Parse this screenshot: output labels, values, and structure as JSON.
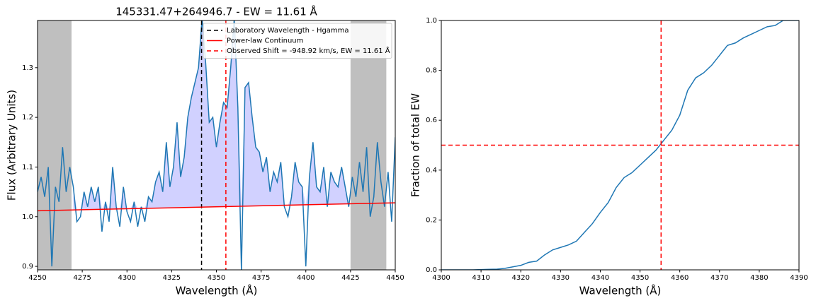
{
  "chart_data": [
    {
      "type": "line",
      "title": "145331.47+264946.7 - EW = 11.61 Å",
      "xlabel": "Wavelength (Å)",
      "ylabel": "Flux (Arbitrary Units)",
      "xlim": [
        4250,
        4450
      ],
      "ylim": [
        0.893,
        1.395
      ],
      "xticks": [
        4250,
        4275,
        4300,
        4325,
        4350,
        4375,
        4400,
        4425,
        4450
      ],
      "yticks": [
        0.9,
        {
          "value": 1,
          "label": "1.0"
        },
        1.1,
        1.2,
        1.3
      ],
      "color": "#1f77b4",
      "x": [
        4250,
        4252,
        4254,
        4256,
        4258,
        4260,
        4262,
        4264,
        4266,
        4268,
        4270,
        4272,
        4274,
        4276,
        4278,
        4280,
        4282,
        4284,
        4286,
        4288,
        4290,
        4292,
        4294,
        4296,
        4298,
        4300,
        4302,
        4304,
        4306,
        4308,
        4310,
        4312,
        4314,
        4316,
        4318,
        4320,
        4322,
        4324,
        4326,
        4328,
        4330,
        4332,
        4334,
        4336,
        4338,
        4340,
        4342,
        4344,
        4346,
        4348,
        4350,
        4352,
        4354,
        4356,
        4358,
        4360,
        4362,
        4364,
        4366,
        4368,
        4370,
        4372,
        4374,
        4376,
        4378,
        4380,
        4382,
        4384,
        4386,
        4388,
        4390,
        4392,
        4394,
        4396,
        4398,
        4400,
        4402,
        4404,
        4406,
        4408,
        4410,
        4412,
        4414,
        4416,
        4418,
        4420,
        4422,
        4424,
        4426,
        4428,
        4430,
        4432,
        4434,
        4436,
        4438,
        4440,
        4442,
        4444,
        4446,
        4448,
        4450
      ],
      "values": [
        1.05,
        1.08,
        1.04,
        1.1,
        0.9,
        1.06,
        1.03,
        1.14,
        1.05,
        1.1,
        1.06,
        0.99,
        1.0,
        1.05,
        1.02,
        1.06,
        1.03,
        1.06,
        0.97,
        1.03,
        0.99,
        1.1,
        1.02,
        0.98,
        1.06,
        1.01,
        0.99,
        1.03,
        0.98,
        1.02,
        0.99,
        1.04,
        1.03,
        1.07,
        1.09,
        1.05,
        1.15,
        1.06,
        1.1,
        1.19,
        1.08,
        1.12,
        1.2,
        1.24,
        1.27,
        1.3,
        1.4,
        1.31,
        1.19,
        1.2,
        1.14,
        1.19,
        1.23,
        1.22,
        1.3,
        1.4,
        1.22,
        0.89,
        1.26,
        1.27,
        1.2,
        1.14,
        1.13,
        1.09,
        1.12,
        1.05,
        1.09,
        1.07,
        1.11,
        1.02,
        1.0,
        1.04,
        1.11,
        1.07,
        1.06,
        0.9,
        1.08,
        1.15,
        1.06,
        1.05,
        1.1,
        1.02,
        1.09,
        1.07,
        1.06,
        1.1,
        1.06,
        1.02,
        1.08,
        1.04,
        1.11,
        1.05,
        1.14,
        1.0,
        1.04,
        1.15,
        1.07,
        1.02,
        1.09,
        0.99,
        1.16
      ],
      "fill": {
        "color": "#ccccff",
        "range": [
          4269,
          4425
        ]
      },
      "spans": [
        {
          "range": [
            4250,
            4269
          ],
          "color": "#bfbfbf"
        },
        {
          "range": [
            4425,
            4445
          ],
          "color": "#bfbfbf"
        }
      ],
      "lines": [
        {
          "name": "Laboratory Wavelength - Hgamma",
          "color": "#000000",
          "style": "dashed",
          "vx": 4341.7
        },
        {
          "name": "Power-law Continuum",
          "color": "#ff0000",
          "style": "solid",
          "x": [
            4250,
            4450
          ],
          "values": [
            1.012,
            1.028
          ]
        },
        {
          "name": "Observed Shift = -948.92 km/s, EW = 11.61 Å",
          "color": "#ff0000",
          "style": "dashed",
          "vx": 4355.3
        }
      ],
      "legend": "upper right"
    },
    {
      "type": "line",
      "xlabel": "Wavelength (Å)",
      "ylabel": "Fraction of total EW",
      "xlim": [
        4300,
        4390
      ],
      "ylim": [
        0,
        1
      ],
      "xticks": [
        4300,
        4310,
        4320,
        4330,
        4340,
        4350,
        4360,
        4370,
        4380,
        4390
      ],
      "yticks": [
        {
          "value": 0,
          "label": "0.0"
        },
        0.2,
        0.4,
        0.6,
        0.8,
        {
          "value": 1,
          "label": "1.0"
        }
      ],
      "color": "#1f77b4",
      "x": [
        4300,
        4302,
        4304,
        4306,
        4308,
        4310,
        4312,
        4314,
        4316,
        4318,
        4320,
        4322,
        4324,
        4326,
        4328,
        4330,
        4332,
        4334,
        4336,
        4338,
        4340,
        4342,
        4344,
        4346,
        4348,
        4350,
        4352,
        4354,
        4356,
        4358,
        4360,
        4362,
        4364,
        4366,
        4368,
        4370,
        4372,
        4374,
        4376,
        4378,
        4380,
        4382,
        4384,
        4386,
        4388,
        4390
      ],
      "values": [
        0,
        0,
        0,
        0,
        0,
        0.001,
        0.002,
        0.003,
        0.006,
        0.012,
        0.018,
        0.03,
        0.035,
        0.06,
        0.08,
        0.09,
        0.1,
        0.115,
        0.15,
        0.185,
        0.23,
        0.27,
        0.33,
        0.37,
        0.39,
        0.42,
        0.45,
        0.48,
        0.52,
        0.56,
        0.62,
        0.72,
        0.77,
        0.79,
        0.82,
        0.86,
        0.9,
        0.91,
        0.93,
        0.945,
        0.96,
        0.975,
        0.98,
        1.0,
        1.0,
        1.0
      ],
      "lines": [
        {
          "color": "#ff0000",
          "style": "dashed",
          "hy": 0.5
        },
        {
          "color": "#ff0000",
          "style": "dashed",
          "vx": 4355.3
        }
      ]
    }
  ]
}
